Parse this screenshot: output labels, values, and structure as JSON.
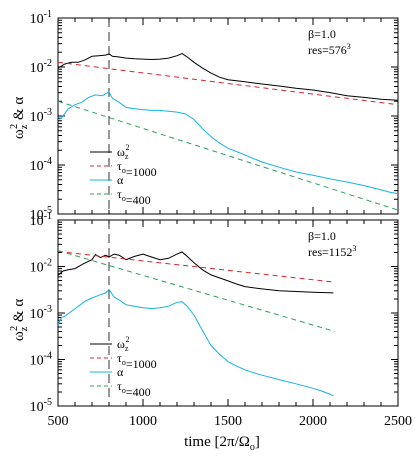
{
  "figure": {
    "ylabel": "ω",
    "ylabel_sub": "z",
    "ylabel_sup": "2",
    "ylabel_rest": " & α",
    "xlabel": "time [2π/Ω",
    "xlabel_sub": "o",
    "xlabel_end": "]",
    "x_ticks": [
      "500",
      "1000",
      "1500",
      "2000",
      "2500"
    ],
    "y_tick_base": "10",
    "y_tick_exps": [
      "-1",
      "-2",
      "-3",
      "-4",
      "-5"
    ]
  },
  "chart_data": [
    {
      "type": "line",
      "log_y": true,
      "xlim": [
        500,
        2500
      ],
      "ylim": [
        1e-05,
        0.1
      ],
      "vline_x": 800,
      "annotation": {
        "line1": "β=1.0",
        "line2": "res=576",
        "line2_sup": "3"
      },
      "legend": [
        {
          "sym": "ω",
          "sub": "z",
          "sup": "2",
          "rest": ""
        },
        {
          "sym": "τ",
          "sub": "o",
          "sup": "",
          "rest": "=1000"
        },
        {
          "sym": "α",
          "sub": "",
          "sup": "",
          "rest": ""
        },
        {
          "sym": "τ",
          "sub": "o",
          "sup": "",
          "rest": "=400"
        }
      ],
      "series": [
        {
          "key": "wz2",
          "color": "#000000",
          "dash": "solid",
          "x": [
            500,
            540,
            580,
            620,
            660,
            700,
            740,
            780,
            800,
            820,
            860,
            900,
            950,
            1000,
            1050,
            1100,
            1150,
            1200,
            1230,
            1260,
            1300,
            1350,
            1400,
            1450,
            1500,
            1600,
            1700,
            1800,
            1900,
            2000,
            2100,
            2200,
            2300,
            2400,
            2500
          ],
          "y": [
            0.0095,
            0.0115,
            0.0125,
            0.0125,
            0.014,
            0.0165,
            0.017,
            0.0175,
            0.0185,
            0.0165,
            0.016,
            0.0152,
            0.0148,
            0.0145,
            0.0142,
            0.0145,
            0.0152,
            0.017,
            0.0188,
            0.016,
            0.0125,
            0.0095,
            0.0075,
            0.0062,
            0.0055,
            0.005,
            0.0045,
            0.0041,
            0.0037,
            0.0034,
            0.003,
            0.0026,
            0.0024,
            0.0022,
            0.0021
          ]
        },
        {
          "key": "tau1000",
          "color": "#d62728",
          "dash": "5,4",
          "x": [
            500,
            2500
          ],
          "y": [
            0.0125,
            0.0017
          ]
        },
        {
          "key": "alpha",
          "color": "#14b4e6",
          "dash": "solid",
          "x": [
            500,
            520,
            560,
            600,
            640,
            680,
            720,
            760,
            800,
            820,
            860,
            900,
            950,
            1000,
            1050,
            1100,
            1150,
            1200,
            1250,
            1300,
            1350,
            1400,
            1450,
            1500,
            1600,
            1700,
            1800,
            1900,
            2000,
            2100,
            2200,
            2300,
            2400,
            2450,
            2500
          ],
          "y": [
            0.00085,
            0.0009,
            0.0014,
            0.0017,
            0.0019,
            0.0024,
            0.0027,
            0.0026,
            0.0031,
            0.0023,
            0.0019,
            0.0015,
            0.0014,
            0.00135,
            0.0013,
            0.0013,
            0.00125,
            0.0012,
            0.0011,
            0.00085,
            0.00055,
            0.00038,
            0.00028,
            0.00022,
            0.00016,
            0.000115,
            9e-05,
            7.2e-05,
            6.2e-05,
            5.2e-05,
            4.5e-05,
            3.8e-05,
            3.1e-05,
            2.8e-05,
            2.6e-05
          ]
        },
        {
          "key": "tau400",
          "color": "#2ca060",
          "dash": "5,4",
          "x": [
            500,
            2500
          ],
          "y": [
            0.002,
            1.2e-05
          ]
        }
      ]
    },
    {
      "type": "line",
      "log_y": true,
      "xlim": [
        500,
        2500
      ],
      "ylim": [
        1e-05,
        0.1
      ],
      "vline_x": 800,
      "annotation": {
        "line1": "β=1.0",
        "line2": "res=1152",
        "line2_sup": "3"
      },
      "legend": [
        {
          "sym": "ω",
          "sub": "z",
          "sup": "2",
          "rest": ""
        },
        {
          "sym": "τ",
          "sub": "o",
          "sup": "",
          "rest": "=1000"
        },
        {
          "sym": "α",
          "sub": "",
          "sup": "",
          "rest": ""
        },
        {
          "sym": "τ",
          "sub": "o",
          "sup": "",
          "rest": "=400"
        }
      ],
      "series": [
        {
          "key": "wz2",
          "color": "#000000",
          "dash": "solid",
          "x": [
            500,
            530,
            560,
            600,
            650,
            700,
            720,
            750,
            780,
            800,
            830,
            860,
            900,
            950,
            1000,
            1050,
            1100,
            1150,
            1200,
            1230,
            1260,
            1300,
            1350,
            1400,
            1450,
            1500,
            1550,
            1600,
            1700,
            1800,
            1900,
            2000,
            2120
          ],
          "y": [
            0.0065,
            0.008,
            0.0085,
            0.009,
            0.0115,
            0.014,
            0.018,
            0.0155,
            0.0175,
            0.016,
            0.0185,
            0.0175,
            0.014,
            0.0165,
            0.0185,
            0.016,
            0.014,
            0.015,
            0.0185,
            0.0205,
            0.0165,
            0.012,
            0.0085,
            0.0066,
            0.0057,
            0.0049,
            0.0042,
            0.0037,
            0.0033,
            0.003,
            0.0029,
            0.0028,
            0.0027
          ]
        },
        {
          "key": "tau1000",
          "color": "#d62728",
          "dash": "5,4",
          "x": [
            500,
            2130
          ],
          "y": [
            0.021,
            0.0046
          ]
        },
        {
          "key": "alpha",
          "color": "#14b4e6",
          "dash": "solid",
          "x": [
            500,
            520,
            540,
            580,
            620,
            660,
            700,
            740,
            780,
            800,
            830,
            870,
            900,
            950,
            1000,
            1050,
            1100,
            1150,
            1200,
            1230,
            1260,
            1300,
            1350,
            1400,
            1450,
            1500,
            1550,
            1600,
            1650,
            1700,
            1800,
            1900,
            2000,
            2050,
            2100,
            2120
          ],
          "y": [
            0.00055,
            0.0008,
            0.00085,
            0.0011,
            0.0014,
            0.0018,
            0.0021,
            0.0024,
            0.0027,
            0.0032,
            0.0022,
            0.0018,
            0.0015,
            0.0014,
            0.0013,
            0.00125,
            0.0013,
            0.0014,
            0.0017,
            0.00175,
            0.0014,
            0.0009,
            0.00042,
            0.0002,
            0.00013,
            9e-05,
            7.2e-05,
            6e-05,
            5.2e-05,
            4.6e-05,
            3.7e-05,
            3e-05,
            2.4e-05,
            2.1e-05,
            1.8e-05,
            1.65e-05
          ]
        },
        {
          "key": "tau400",
          "color": "#2ca060",
          "dash": "5,4",
          "x": [
            500,
            2130
          ],
          "y": [
            0.022,
            0.0004
          ]
        }
      ]
    }
  ]
}
